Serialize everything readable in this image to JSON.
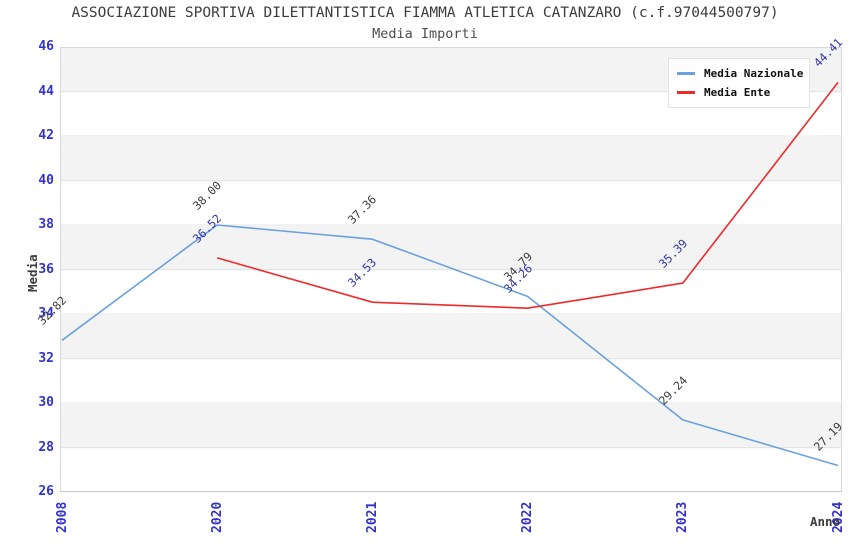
{
  "chart_data": {
    "type": "line",
    "title": "ASSOCIAZIONE SPORTIVA DILETTANTISTICA FIAMMA ATLETICA CATANZARO (c.f.97044500797)",
    "subtitle": "Media Importi",
    "xlabel": "Anno",
    "ylabel": "Media",
    "categories": [
      "2008",
      "2020",
      "2021",
      "2022",
      "2023",
      "2024"
    ],
    "series": [
      {
        "name": "Media Nazionale",
        "color": "#6aa1de",
        "label_color": "#3c3c3c",
        "values": [
          32.82,
          38.0,
          37.36,
          34.79,
          29.24,
          27.19
        ]
      },
      {
        "name": "Media Ente",
        "color": "#ed2b2b",
        "label_color": "#3333a8",
        "values": [
          null,
          36.52,
          34.53,
          34.26,
          35.39,
          44.41
        ]
      }
    ],
    "ylim": [
      26,
      46
    ],
    "ytick_step": 2,
    "grid": "horizontal-bands",
    "band_color": "#f3f3f3",
    "gridline_color": "#e4e4e4",
    "axis_tick_color": "#3232cc",
    "legend_position": "top-right",
    "value_label_decimals": 2
  }
}
